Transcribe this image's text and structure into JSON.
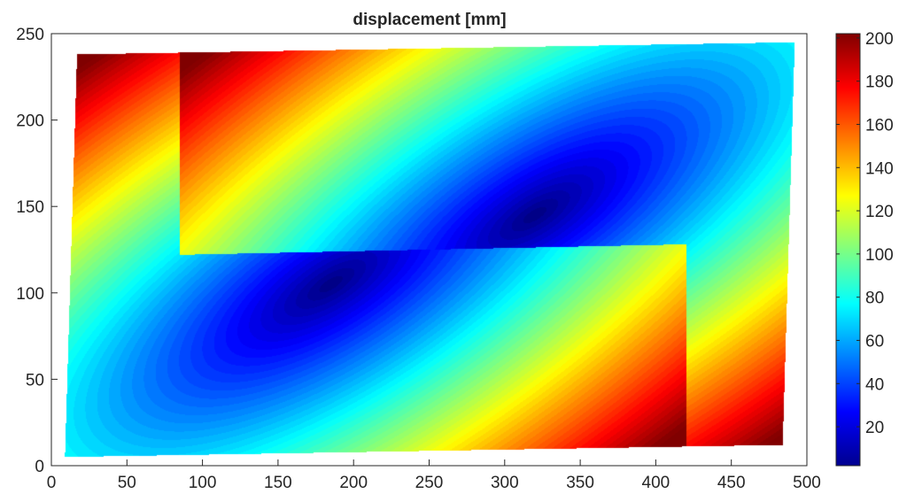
{
  "chart_data": {
    "type": "heatmap",
    "subtype": "filled-contour",
    "title": "displacement [mm]",
    "xlabel": "",
    "ylabel": "",
    "xlim": [
      0,
      500
    ],
    "ylim": [
      0,
      250
    ],
    "xticks": [
      0,
      50,
      100,
      150,
      200,
      250,
      300,
      350,
      400,
      450,
      500
    ],
    "yticks": [
      0,
      50,
      100,
      150,
      200,
      250
    ],
    "colormap": "jet",
    "colorbar": {
      "clim": [
        2,
        202
      ],
      "ticks": [
        20,
        40,
        60,
        80,
        100,
        120,
        140,
        160,
        180,
        200
      ]
    },
    "domain_corners": [
      [
        17,
        238
      ],
      [
        492,
        245
      ],
      [
        484,
        12
      ],
      [
        9,
        5
      ]
    ],
    "crack": {
      "start": [
        85,
        122
      ],
      "end": [
        415,
        128
      ]
    },
    "field_samples": [
      {
        "x": 25,
        "y": 232,
        "value": 202
      },
      {
        "x": 480,
        "y": 18,
        "value": 200
      },
      {
        "x": 320,
        "y": 145,
        "value": 2
      },
      {
        "x": 185,
        "y": 105,
        "value": 2
      },
      {
        "x": 480,
        "y": 235,
        "value": 90
      },
      {
        "x": 15,
        "y": 12,
        "value": 85
      },
      {
        "x": 15,
        "y": 130,
        "value": 135
      },
      {
        "x": 490,
        "y": 120,
        "value": 140
      }
    ]
  }
}
